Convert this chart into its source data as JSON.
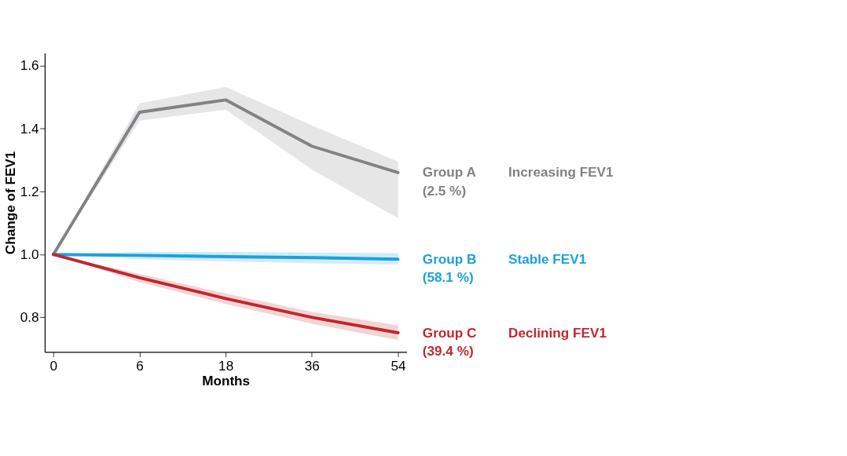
{
  "chart_data": {
    "type": "line",
    "xlabel": "Months",
    "ylabel": "Change of FEV1",
    "categories": [
      "0",
      "6",
      "18",
      "36",
      "54"
    ],
    "series": [
      {
        "name": "Group A",
        "color": "#808285",
        "values": [
          1.0,
          1.452,
          1.491,
          1.344,
          1.26
        ],
        "lower": [
          1.0,
          1.425,
          1.46,
          1.27,
          1.115
        ],
        "upper": [
          1.0,
          1.48,
          1.532,
          1.41,
          1.295
        ]
      },
      {
        "name": "Group B",
        "color": "#1ba1dc",
        "values": [
          1.0,
          0.997,
          0.993,
          0.99,
          0.985
        ],
        "lower": [
          1.0,
          0.985,
          0.978,
          0.972,
          0.968
        ],
        "upper": [
          1.0,
          1.008,
          1.008,
          1.006,
          1.004
        ]
      },
      {
        "name": "Group C",
        "color": "#c1272d",
        "values": [
          1.0,
          0.926,
          0.86,
          0.8,
          0.751
        ],
        "lower": [
          1.0,
          0.912,
          0.843,
          0.78,
          0.728
        ],
        "upper": [
          1.0,
          0.938,
          0.876,
          0.818,
          0.775
        ]
      }
    ],
    "annotations": [
      "(2.5 %)",
      "Increasing FEV1",
      "(58.1 %)",
      "Stable FEV1",
      "(39.4 %)",
      "Declining FEV1"
    ],
    "ylim": [
      0.69,
      1.64
    ],
    "yticks": [
      {
        "value": 0.8,
        "label": "0.8"
      },
      {
        "value": 1.0,
        "label": "1.0"
      },
      {
        "value": 1.2,
        "label": "1.2"
      },
      {
        "value": 1.4,
        "label": "1.4"
      },
      {
        "value": 1.6,
        "label": "1.6"
      }
    ],
    "grid": false,
    "marker": "none",
    "line_style": "solid"
  }
}
